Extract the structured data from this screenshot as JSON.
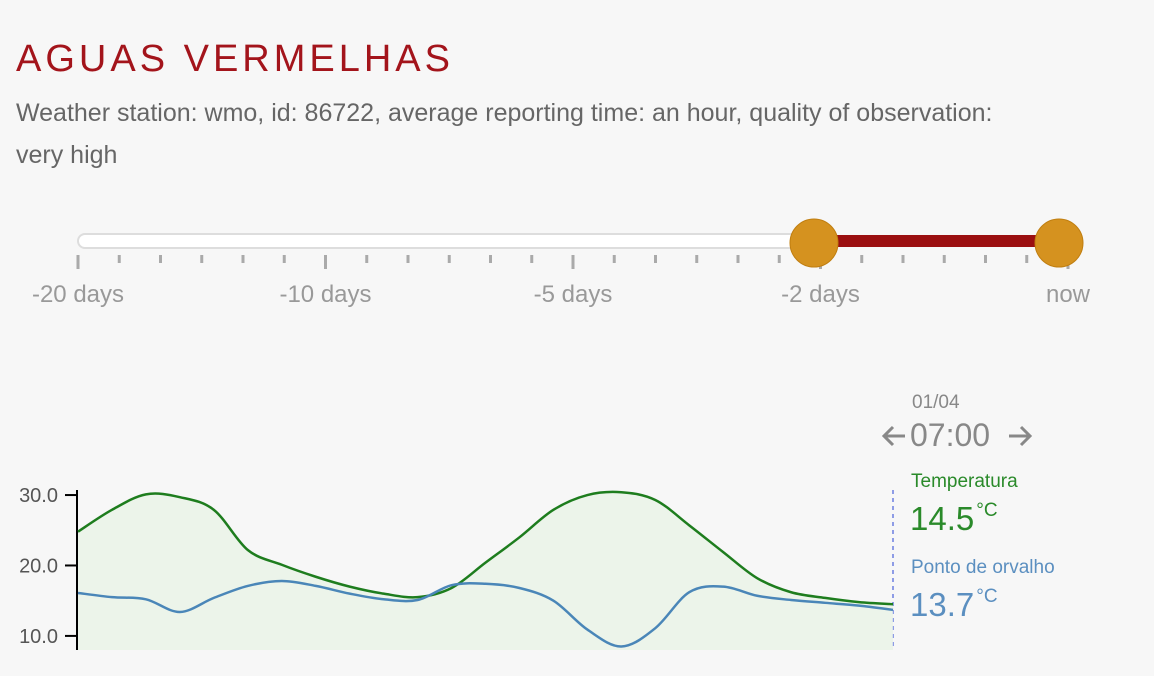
{
  "header": {
    "title": "AGUAS VERMELHAS",
    "description": "Weather station: wmo, id: 86722, average reporting time: an hour, quality of observation: very high"
  },
  "slider": {
    "labels": [
      "-20 days",
      "-10 days",
      "-5 days",
      "-2 days",
      "now"
    ]
  },
  "readout": {
    "date": "01/04",
    "time": "07:00",
    "items": [
      {
        "name": "Temperatura",
        "value": 14.5,
        "unit": "°C",
        "color": "#2a8a2a"
      },
      {
        "name": "Ponto de orvalho",
        "value": 13.7,
        "unit": "°C",
        "color": "#5b8fc0"
      }
    ]
  },
  "chart_data": {
    "type": "line",
    "series": [
      {
        "name": "Temperatura",
        "color": "#1e7d1e",
        "values": [
          24.8,
          27.9,
          30.1,
          29.7,
          27.9,
          22.2,
          20.1,
          18.4,
          17.0,
          16.0,
          15.5,
          16.8,
          20.4,
          24.0,
          27.9,
          30.0,
          30.4,
          29.3,
          25.7,
          21.9,
          18.2,
          16.2,
          15.4,
          14.8,
          14.5
        ]
      },
      {
        "name": "Ponto de orvalho",
        "color": "#4a86b8",
        "values": [
          16.1,
          15.5,
          15.2,
          13.4,
          15.4,
          17.1,
          17.8,
          17.1,
          16.0,
          15.2,
          15.1,
          17.2,
          17.4,
          16.8,
          15.0,
          10.9,
          8.5,
          11.1,
          16.2,
          17.0,
          15.7,
          15.1,
          14.7,
          14.3,
          13.7
        ]
      }
    ],
    "ylim": [
      8,
      31
    ],
    "yticks": [
      {
        "value": 10,
        "label": "10.0"
      },
      {
        "value": 20,
        "label": "20.0"
      },
      {
        "value": 30,
        "label": "30.0"
      }
    ]
  }
}
